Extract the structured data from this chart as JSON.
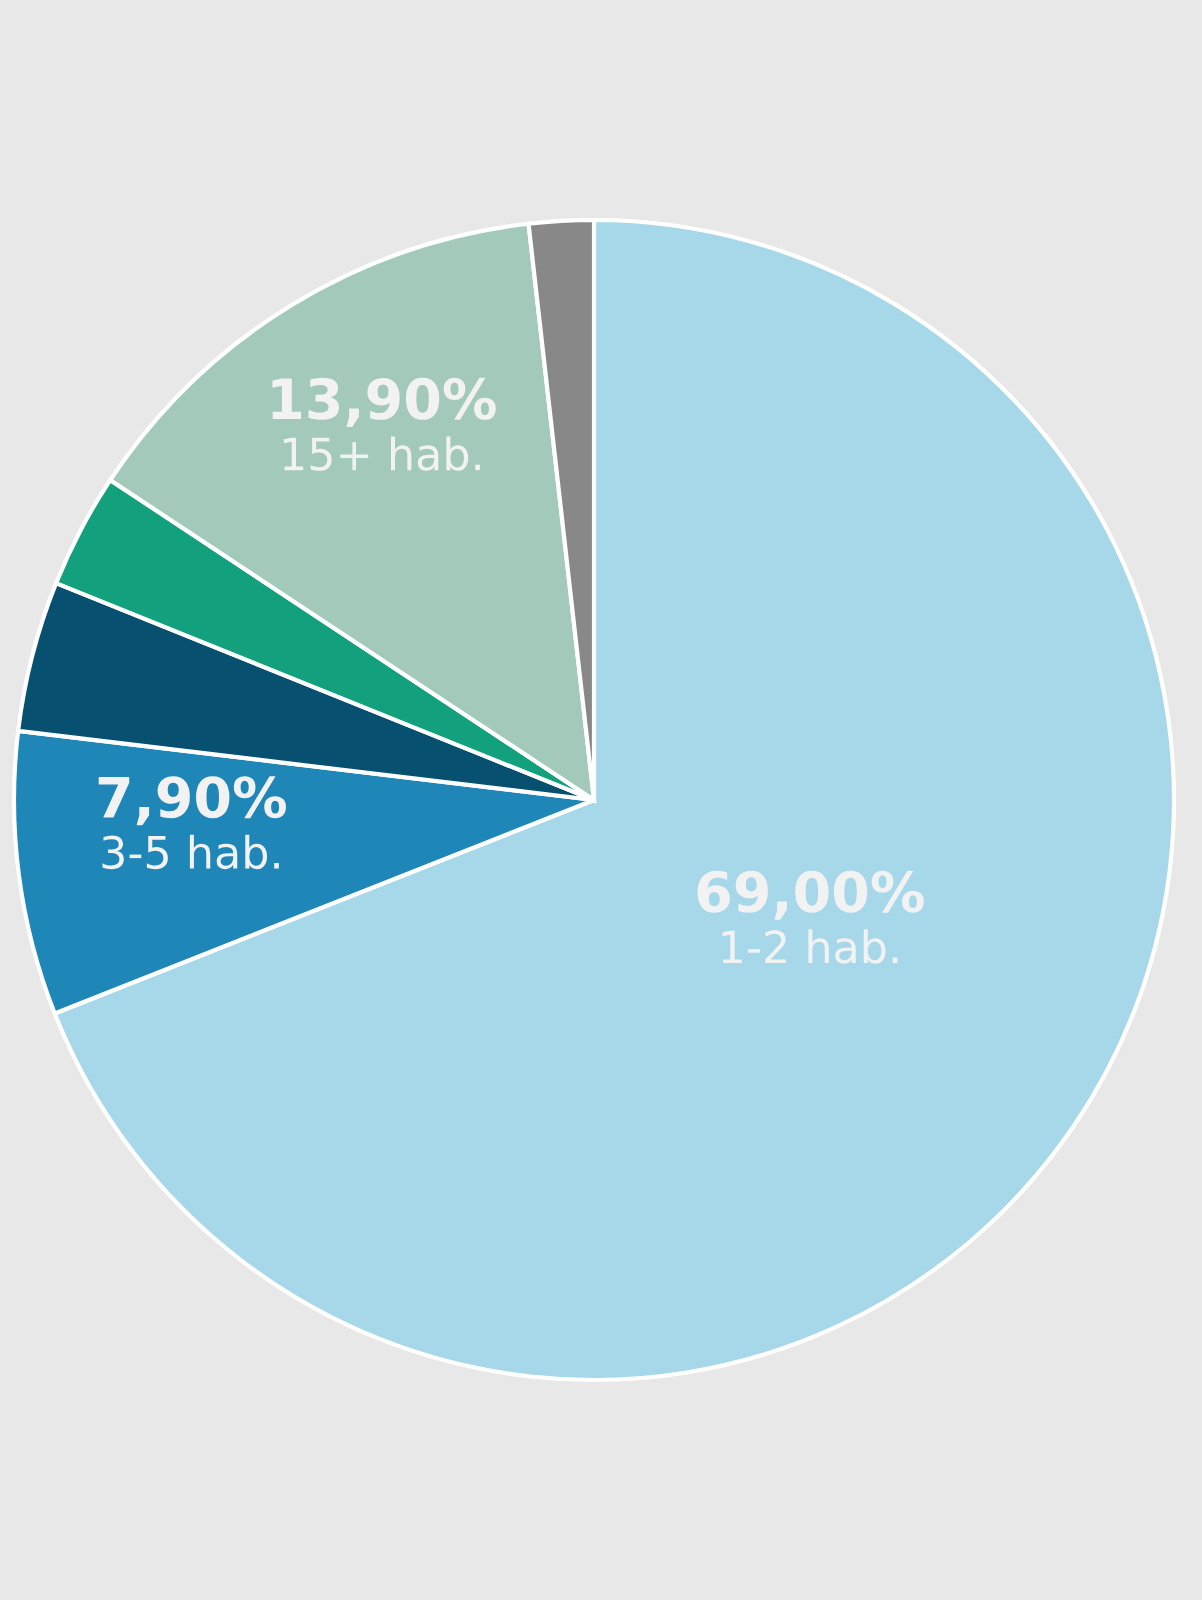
{
  "chart_data": {
    "type": "pie",
    "categories": [
      "1-2 hab.",
      "3-5 hab.",
      null,
      null,
      "15+ hab.",
      null
    ],
    "values": [
      69.0,
      7.9,
      4.2,
      3.2,
      13.9,
      1.8
    ],
    "value_labels": [
      "69,00%",
      "7,90%",
      null,
      null,
      "13,90%",
      null
    ],
    "colors": [
      "#a6d8ea",
      "#1f86b8",
      "#08506f",
      "#13a07c",
      "#a3c9bb",
      "#888888"
    ],
    "legend": false
  }
}
